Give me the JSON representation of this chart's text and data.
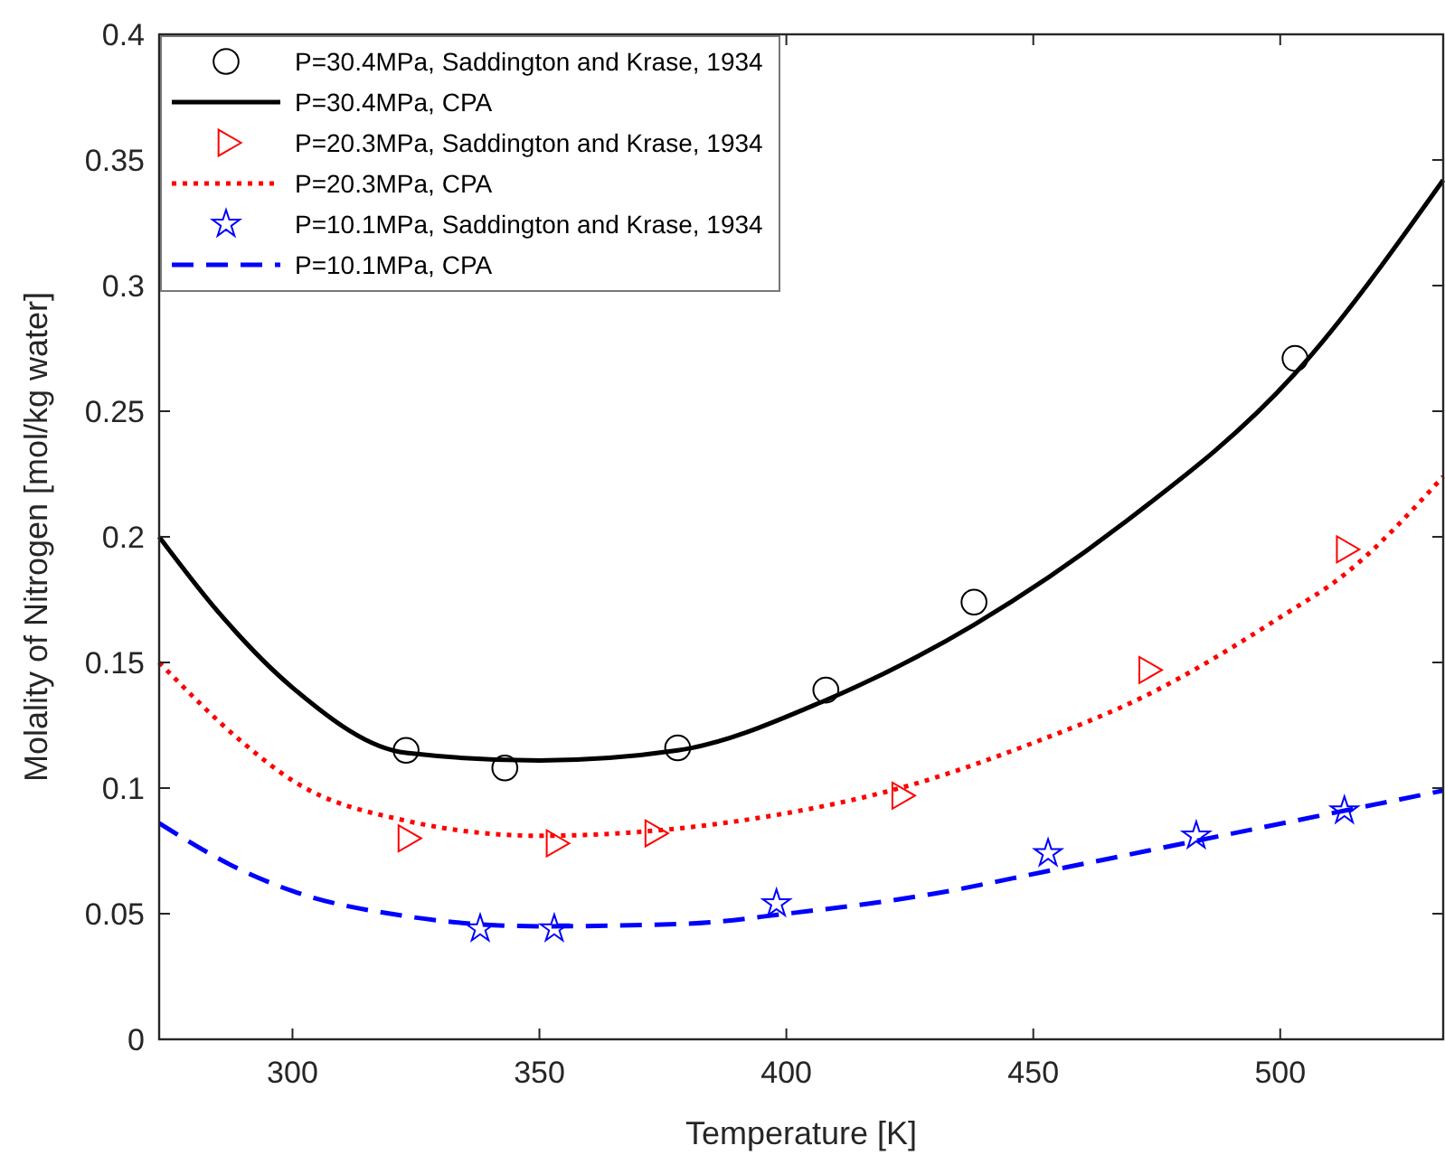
{
  "chart_data": {
    "type": "line",
    "xlabel": "Temperature [K]",
    "ylabel": "Molality of Nitrogen [mol/kg water]",
    "xlim": [
      273,
      533
    ],
    "ylim": [
      0,
      0.4
    ],
    "xticks": [
      300,
      350,
      400,
      450,
      500
    ],
    "yticks": [
      0,
      0.05,
      0.1,
      0.15,
      0.2,
      0.25,
      0.3,
      0.35,
      0.4
    ],
    "grid": false,
    "legend": "top left",
    "series": [
      {
        "name": "P=30.4MPa, Saddington and Krase, 1934",
        "type": "scatter",
        "marker": "circle",
        "color": "#000000",
        "x": [
          323,
          343,
          378,
          408,
          438,
          503
        ],
        "values": [
          0.115,
          0.108,
          0.116,
          0.139,
          0.174,
          0.271
        ]
      },
      {
        "name": "P=30.4MPa, CPA",
        "marker": "none",
        "line_style": "solid",
        "color": "#000000",
        "x": [
          273,
          285,
          300,
          323,
          350,
          378,
          408,
          438,
          468,
          503,
          533
        ],
        "values": [
          0.2,
          0.17,
          0.14,
          0.114,
          0.111,
          0.115,
          0.135,
          0.165,
          0.205,
          0.265,
          0.342
        ]
      },
      {
        "name": "P=20.3MPa, Saddington and Krase, 1934",
        "type": "scatter",
        "marker": "triangle",
        "color": "#ff0000",
        "x": [
          323,
          353,
          373,
          423,
          473,
          513
        ],
        "values": [
          0.08,
          0.078,
          0.082,
          0.097,
          0.147,
          0.195
        ]
      },
      {
        "name": "P=20.3MPa, CPA",
        "marker": "none",
        "line_style": "dotted",
        "color": "#ff0000",
        "x": [
          273,
          290,
          300,
          323,
          350,
          373,
          400,
          423,
          450,
          473,
          500,
          513,
          533
        ],
        "values": [
          0.15,
          0.118,
          0.103,
          0.087,
          0.081,
          0.083,
          0.09,
          0.1,
          0.118,
          0.137,
          0.168,
          0.185,
          0.224
        ]
      },
      {
        "name": "P=10.1MPa, Saddington and Krase, 1934",
        "type": "scatter",
        "marker": "star",
        "color": "#0000ff",
        "x": [
          338,
          353,
          398,
          453,
          483,
          513
        ],
        "values": [
          0.044,
          0.044,
          0.054,
          0.074,
          0.081,
          0.091
        ]
      },
      {
        "name": "P=10.1MPa, CPA",
        "marker": "none",
        "line_style": "dashed",
        "color": "#0000ff",
        "x": [
          273,
          290,
          300,
          323,
          350,
          380,
          400,
          430,
          453,
          483,
          513,
          533
        ],
        "values": [
          0.086,
          0.067,
          0.059,
          0.049,
          0.045,
          0.046,
          0.05,
          0.058,
          0.067,
          0.079,
          0.091,
          0.099
        ]
      }
    ]
  }
}
